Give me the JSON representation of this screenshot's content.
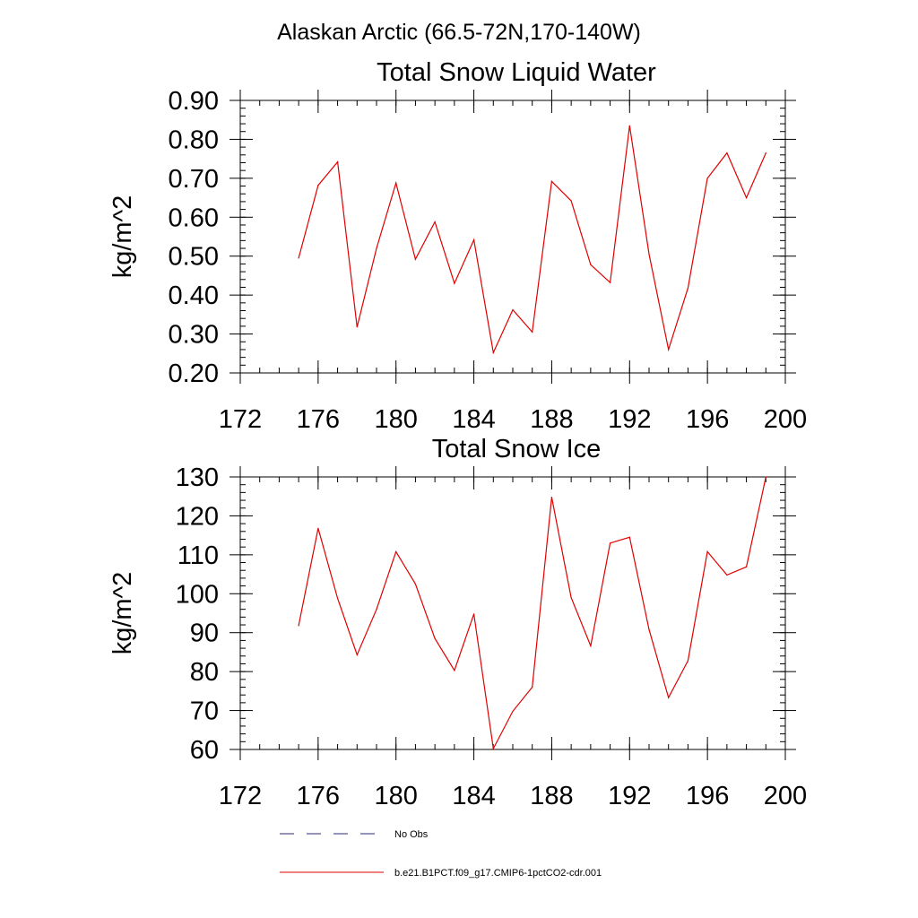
{
  "page": {
    "title": "Alaskan Arctic (66.5-72N,170-140W)"
  },
  "legend": {
    "entries": [
      {
        "label": "No Obs",
        "color": "#2b2b7a",
        "dash": "dashed"
      },
      {
        "label": "b.e21.B1PCT.f09_g17.CMIP6-1pctCO2-cdr.001",
        "color": "#e00000",
        "dash": "solid"
      }
    ]
  },
  "chart_data": [
    {
      "type": "line",
      "title": "Total Snow Liquid Water",
      "ylabel": "kg/m^2",
      "xlim": [
        172,
        200
      ],
      "ylim": [
        0.2,
        0.9
      ],
      "xticks": [
        172,
        176,
        180,
        184,
        188,
        192,
        196,
        200
      ],
      "xtick_labels": [
        "172",
        "176",
        "180",
        "184",
        "188",
        "192",
        "196",
        "200"
      ],
      "yticks": [
        0.2,
        0.3,
        0.4,
        0.5,
        0.6,
        0.7,
        0.8,
        0.9
      ],
      "ytick_labels": [
        "0.20",
        "0.30",
        "0.40",
        "0.50",
        "0.60",
        "0.70",
        "0.80",
        "0.90"
      ],
      "series": [
        {
          "name": "b.e21.B1PCT.f09_g17.CMIP6-1pctCO2-cdr.001",
          "color": "#e00000",
          "x": [
            175,
            176,
            177,
            178,
            179,
            180,
            181,
            182,
            183,
            184,
            185,
            186,
            187,
            188,
            189,
            190,
            191,
            192,
            193,
            194,
            195,
            196,
            197,
            198,
            199
          ],
          "y": [
            0.495,
            0.682,
            0.742,
            0.318,
            0.52,
            0.688,
            0.492,
            0.588,
            0.43,
            0.542,
            0.252,
            0.362,
            0.305,
            0.692,
            0.642,
            0.478,
            0.432,
            0.835,
            0.505,
            0.26,
            0.418,
            0.7,
            0.765,
            0.65,
            0.765
          ]
        }
      ]
    },
    {
      "type": "line",
      "title": "Total Snow Ice",
      "ylabel": "kg/m^2",
      "xlim": [
        172,
        200
      ],
      "ylim": [
        60,
        130
      ],
      "xticks": [
        172,
        176,
        180,
        184,
        188,
        192,
        196,
        200
      ],
      "xtick_labels": [
        "172",
        "176",
        "180",
        "184",
        "188",
        "192",
        "196",
        "200"
      ],
      "yticks": [
        60,
        70,
        80,
        90,
        100,
        110,
        120,
        130
      ],
      "ytick_labels": [
        "60",
        "70",
        "80",
        "90",
        "100",
        "110",
        "120",
        "130"
      ],
      "series": [
        {
          "name": "b.e21.B1PCT.f09_g17.CMIP6-1pctCO2-cdr.001",
          "color": "#e00000",
          "x": [
            175,
            176,
            177,
            178,
            179,
            180,
            181,
            182,
            183,
            184,
            185,
            186,
            187,
            188,
            189,
            190,
            191,
            192,
            193,
            194,
            195,
            196,
            197,
            198,
            199
          ],
          "y": [
            91.8,
            116.8,
            98.8,
            84.3,
            96.0,
            110.8,
            102.5,
            88.5,
            80.3,
            94.8,
            60.2,
            69.8,
            76.0,
            124.8,
            99.0,
            86.6,
            113.0,
            114.5,
            90.8,
            73.3,
            82.8,
            110.8,
            104.8,
            106.9,
            130.0
          ]
        }
      ]
    }
  ]
}
